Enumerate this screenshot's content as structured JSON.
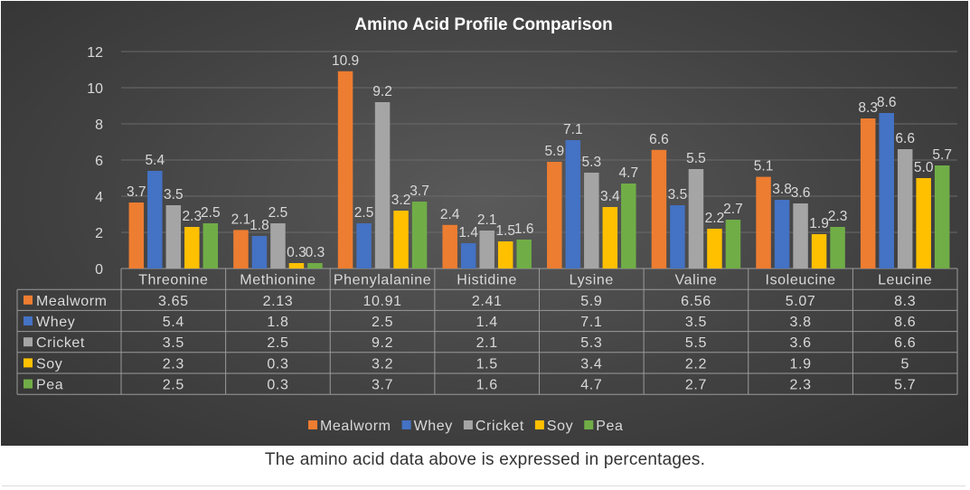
{
  "caption": "The amino acid data above is expressed in percentages.",
  "colors": {
    "Mealworm": "#ED7D31",
    "Whey": "#4472C4",
    "Cricket": "#A5A5A5",
    "Soy": "#FFC000",
    "Pea": "#70AD47"
  },
  "chart_data": {
    "type": "bar",
    "title": "Amino Acid Profile Comparison",
    "xlabel": "",
    "ylabel": "",
    "ylim": [
      0,
      12
    ],
    "yticks": [
      0,
      2,
      4,
      6,
      8,
      10,
      12
    ],
    "grid": true,
    "legend_placement": "bottom",
    "categories": [
      "Threonine",
      "Methionine",
      "Phenylalanine",
      "Histidine",
      "Lysine",
      "Valine",
      "Isoleucine",
      "Leucine"
    ],
    "series": [
      {
        "name": "Mealworm",
        "values": [
          3.65,
          2.13,
          10.91,
          2.41,
          5.9,
          6.56,
          5.07,
          8.3
        ],
        "data_labels": [
          "3.7",
          "2.1",
          "10.9",
          "2.4",
          "5.9",
          "6.6",
          "5.1",
          "8.3"
        ],
        "table_values": [
          "3.65",
          "2.13",
          "10.91",
          "2.41",
          "5.9",
          "6.56",
          "5.07",
          "8.3"
        ]
      },
      {
        "name": "Whey",
        "values": [
          5.4,
          1.8,
          2.5,
          1.4,
          7.1,
          3.5,
          3.8,
          8.6
        ],
        "data_labels": [
          "5.4",
          "1.8",
          "2.5",
          "1.4",
          "7.1",
          "3.5",
          "3.8",
          "8.6"
        ],
        "table_values": [
          "5.4",
          "1.8",
          "2.5",
          "1.4",
          "7.1",
          "3.5",
          "3.8",
          "8.6"
        ]
      },
      {
        "name": "Cricket",
        "values": [
          3.5,
          2.5,
          9.2,
          2.1,
          5.3,
          5.5,
          3.6,
          6.6
        ],
        "data_labels": [
          "3.5",
          "2.5",
          "9.2",
          "2.1",
          "5.3",
          "5.5",
          "3.6",
          "6.6"
        ],
        "table_values": [
          "3.5",
          "2.5",
          "9.2",
          "2.1",
          "5.3",
          "5.5",
          "3.6",
          "6.6"
        ]
      },
      {
        "name": "Soy",
        "values": [
          2.3,
          0.3,
          3.2,
          1.5,
          3.4,
          2.2,
          1.9,
          5.0
        ],
        "data_labels": [
          "2.3",
          "0.3",
          "3.2",
          "1.5",
          "3.4",
          "2.2",
          "1.9",
          "5.0"
        ],
        "table_values": [
          "2.3",
          "0.3",
          "3.2",
          "1.5",
          "3.4",
          "2.2",
          "1.9",
          "5"
        ]
      },
      {
        "name": "Pea",
        "values": [
          2.5,
          0.3,
          3.7,
          1.6,
          4.7,
          2.7,
          2.3,
          5.7
        ],
        "data_labels": [
          "2.5",
          "0.3",
          "3.7",
          "1.6",
          "4.7",
          "2.7",
          "2.3",
          "5.7"
        ],
        "table_values": [
          "2.5",
          "0.3",
          "3.7",
          "1.6",
          "4.7",
          "2.7",
          "2.3",
          "5.7"
        ]
      }
    ]
  }
}
